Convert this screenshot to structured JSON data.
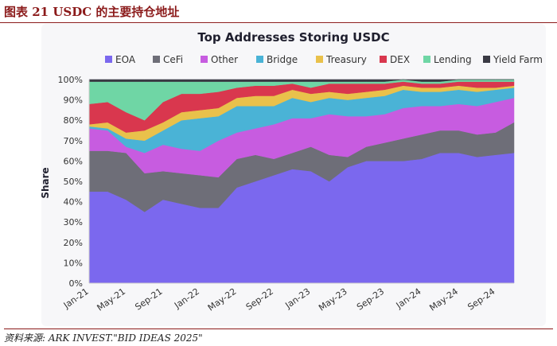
{
  "figure": {
    "label": "图表 21 USDC 的主要持仓地址",
    "source": "资料来源: ARK INVEST.\"BID IDEAS 2025\""
  },
  "chart_data": {
    "type": "area",
    "stacked": true,
    "title": "Top Addresses Storing USDC",
    "ylabel": "Share",
    "ylim": [
      0,
      100
    ],
    "y_ticks": [
      "0%",
      "10%",
      "20%",
      "30%",
      "40%",
      "50%",
      "60%",
      "70%",
      "80%",
      "90%",
      "100%"
    ],
    "x_ticks": [
      "Jan-21",
      "May-21",
      "Sep-21",
      "Jan-22",
      "May-22",
      "Sep-22",
      "Jan-23",
      "May-23",
      "Sep-23",
      "Jan-24",
      "May-24",
      "Sep-24"
    ],
    "x": [
      "Jan-21",
      "Mar-21",
      "May-21",
      "Jul-21",
      "Sep-21",
      "Nov-21",
      "Jan-22",
      "Mar-22",
      "May-22",
      "Jul-22",
      "Sep-22",
      "Nov-22",
      "Jan-23",
      "Mar-23",
      "May-23",
      "Jul-23",
      "Sep-23",
      "Nov-23",
      "Jan-24",
      "Mar-24",
      "May-24",
      "Jul-24",
      "Sep-24",
      "Nov-24"
    ],
    "legend_position": "top",
    "grid": true,
    "series": [
      {
        "name": "EOA",
        "color": "#7b68ee",
        "values": [
          45,
          45,
          41,
          35,
          41,
          39,
          37,
          37,
          47,
          50,
          53,
          56,
          55,
          50,
          57,
          60,
          60,
          60,
          61,
          64,
          64,
          62,
          63,
          64
        ]
      },
      {
        "name": "CeFi",
        "color": "#6e6e78",
        "values": [
          20,
          20,
          23,
          19,
          14,
          15,
          16,
          15,
          14,
          13,
          8,
          8,
          12,
          13,
          5,
          7,
          9,
          11,
          12,
          11,
          11,
          11,
          11,
          15
        ]
      },
      {
        "name": "Other",
        "color": "#c75ce0",
        "values": [
          11,
          10,
          3,
          10,
          13,
          12,
          12,
          18,
          13,
          13,
          17,
          17,
          14,
          20,
          20,
          15,
          14,
          15,
          14,
          12,
          13,
          14,
          15,
          12
        ]
      },
      {
        "name": "Bridge",
        "color": "#4ab3d6",
        "values": [
          1,
          1,
          4,
          6,
          7,
          14,
          16,
          12,
          13,
          11,
          9,
          10,
          8,
          8,
          8,
          9,
          9,
          9,
          7,
          7,
          7,
          7,
          6,
          5
        ]
      },
      {
        "name": "Treasury",
        "color": "#e9c14b",
        "values": [
          1,
          3,
          3,
          5,
          4,
          4,
          4,
          4,
          4,
          5,
          5,
          4,
          4,
          3,
          3,
          3,
          3,
          2,
          2,
          2,
          2,
          2,
          1,
          1
        ]
      },
      {
        "name": "DEX",
        "color": "#d9374e",
        "values": [
          10,
          10,
          10,
          5,
          10,
          9,
          8,
          8,
          5,
          5,
          5,
          3,
          3,
          4,
          5,
          4,
          3,
          2,
          2,
          2,
          2,
          3,
          3,
          2
        ]
      },
      {
        "name": "Lending",
        "color": "#6fd6a5",
        "values": [
          11,
          10,
          15,
          19,
          10,
          6,
          6,
          5,
          3,
          2,
          2,
          1,
          3,
          1,
          1,
          1,
          1,
          1,
          1,
          1,
          1,
          1,
          1,
          1
        ]
      },
      {
        "name": "Yield Farm",
        "color": "#3a3a44",
        "values": [
          1,
          1,
          1,
          1,
          1,
          1,
          1,
          1,
          1,
          1,
          1,
          1,
          1,
          1,
          1,
          1,
          1,
          0,
          1,
          1,
          0,
          0,
          0,
          0
        ]
      }
    ]
  }
}
